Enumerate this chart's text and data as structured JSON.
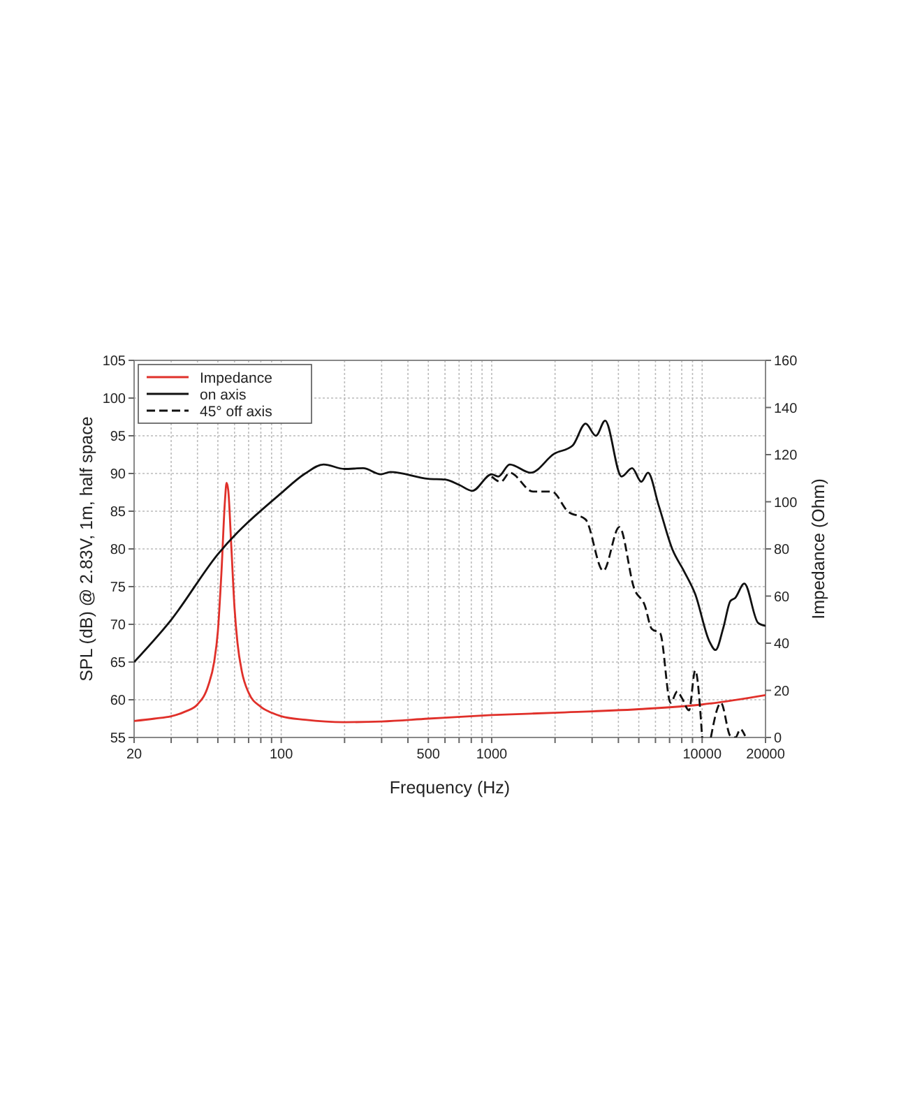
{
  "chart_data": {
    "type": "line",
    "xlabel": "Frequency (Hz)",
    "ylabel": "SPL (dB) @ 2.83V, 1m, half space",
    "y2label": "Impedance (Ohm)",
    "log": "x",
    "grid": true,
    "legend": "top left",
    "xlim": [
      20,
      20000
    ],
    "xticks": [
      20,
      {
        "value": 30,
        "label": null
      },
      {
        "value": 40,
        "label": null
      },
      {
        "value": 50,
        "label": null
      },
      {
        "value": 60,
        "label": null
      },
      {
        "value": 70,
        "label": null
      },
      {
        "value": 80,
        "label": null
      },
      {
        "value": 90,
        "label": null
      },
      100,
      {
        "value": 200,
        "label": null
      },
      {
        "value": 300,
        "label": null
      },
      {
        "value": 400,
        "label": null
      },
      500,
      {
        "value": 600,
        "label": null
      },
      {
        "value": 700,
        "label": null
      },
      {
        "value": 800,
        "label": null
      },
      {
        "value": 900,
        "label": null
      },
      1000,
      {
        "value": 2000,
        "label": null
      },
      {
        "value": 3000,
        "label": null
      },
      {
        "value": 4000,
        "label": null
      },
      {
        "value": 5000,
        "label": null
      },
      {
        "value": 6000,
        "label": null
      },
      {
        "value": 7000,
        "label": null
      },
      {
        "value": 8000,
        "label": null
      },
      {
        "value": 9000,
        "label": null
      },
      10000,
      20000
    ],
    "ylim": [
      55,
      105
    ],
    "yticks": [
      55,
      60,
      65,
      70,
      75,
      80,
      85,
      90,
      95,
      100,
      105
    ],
    "y2lim": [
      0,
      160
    ],
    "y2ticks": [
      0,
      20,
      40,
      60,
      80,
      100,
      120,
      140,
      160
    ],
    "series": [
      {
        "name": "Impedance",
        "color": "#e0302a",
        "axis": "y2",
        "line_style": "solid",
        "x": [
          20,
          25,
          30,
          35,
          40,
          45,
          48,
          50,
          52,
          54,
          55,
          56,
          58,
          60,
          62,
          65,
          70,
          80,
          90,
          100,
          130,
          200,
          300,
          500,
          1000,
          2000,
          5000,
          10000,
          20000
        ],
        "values": [
          7,
          8,
          9,
          11,
          14,
          22,
          32,
          45,
          70,
          100,
          108,
          105,
          80,
          55,
          40,
          28,
          19,
          13,
          10.5,
          9,
          7.5,
          6.5,
          6.8,
          8,
          9.5,
          10.5,
          12,
          14,
          18
        ]
      },
      {
        "name": "on axis",
        "color": "#111111",
        "line_style": "solid",
        "x": [
          20,
          30,
          50,
          100,
          130,
          159,
          200,
          245,
          297,
          330,
          500,
          600,
          700,
          808,
          1000,
          1074,
          1219,
          1533,
          1978,
          2424,
          2794,
          3127,
          3460,
          4140,
          4650,
          5140,
          5530,
          6210,
          7230,
          8180,
          9270,
          10800,
          11580,
          12620,
          13620,
          14350,
          15860,
          18430,
          20000
        ],
        "values": [
          65,
          70.6,
          79.3,
          87.4,
          90,
          91.2,
          90.6,
          90.7,
          89.9,
          90.2,
          89.3,
          89.2,
          88.5,
          87.7,
          89.9,
          89.6,
          91.2,
          90.1,
          92.6,
          93.7,
          96.6,
          95,
          97,
          89.6,
          90.7,
          88.9,
          90.1,
          85.8,
          79.9,
          77.1,
          74,
          67.8,
          66.6,
          69.6,
          73.1,
          73.5,
          75.4,
          70.2,
          69.8
        ]
      },
      {
        "name": "45° off axis",
        "color": "#111111",
        "line_style": "dashed",
        "x": [
          1000,
          1105,
          1219,
          1570,
          1930,
          2295,
          2794,
          3390,
          4040,
          4760,
          5340,
          5760,
          6320,
          7080,
          7620,
          8020,
          8660,
          9270,
          10000,
          10600,
          11000,
          12280,
          13620,
          14400,
          15190,
          16000
        ],
        "values": [
          89.6,
          88.9,
          90.1,
          87.6,
          87.6,
          85,
          83.9,
          77.1,
          82.9,
          74.7,
          72.5,
          69.4,
          68.8,
          59.6,
          61.1,
          60.2,
          58.6,
          63.9,
          55,
          null,
          55,
          59.6,
          55.2,
          55,
          56.1,
          55.2
        ]
      }
    ]
  }
}
